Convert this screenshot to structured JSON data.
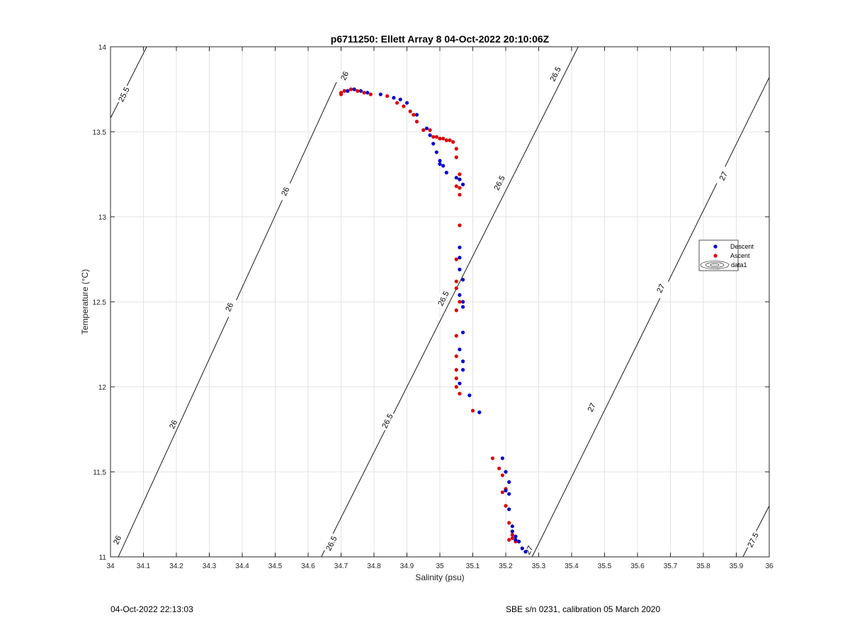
{
  "chart_data": {
    "type": "scatter",
    "title": "p6711250: Ellett Array 8 04-Oct-2022 20:10:06Z",
    "xlabel": "Salinity (psu)",
    "ylabel": "Temperature (°C)",
    "xlim": [
      34,
      36
    ],
    "ylim": [
      11,
      14
    ],
    "grid": true,
    "legend_placement": "right",
    "x_ticks": [
      "34",
      "34.1",
      "34.2",
      "34.3",
      "34.4",
      "34.5",
      "34.6",
      "34.7",
      "34.8",
      "34.9",
      "35",
      "35.1",
      "35.2",
      "35.3",
      "35.4",
      "35.5",
      "35.6",
      "35.7",
      "35.8",
      "35.9",
      "36"
    ],
    "y_ticks": [
      "11",
      "11.5",
      "12",
      "12.5",
      "13",
      "13.5",
      "14"
    ],
    "contours": [
      {
        "label": "25.5",
        "points": [
          [
            34.0,
            13.58
          ],
          [
            34.11,
            14.0
          ]
        ],
        "label_positions": [
          [
            34.04,
            13.72
          ]
        ]
      },
      {
        "label": "26",
        "points": [
          [
            34.0,
            10.9
          ],
          [
            34.7,
            13.85
          ]
        ],
        "label_positions": [
          [
            34.02,
            11.1
          ],
          [
            34.19,
            11.78
          ],
          [
            34.36,
            12.47
          ],
          [
            34.53,
            13.15
          ],
          [
            34.71,
            13.83
          ]
        ]
      },
      {
        "label": "26.5",
        "points": [
          [
            34.64,
            11.0
          ],
          [
            35.42,
            14.0
          ]
        ],
        "label_positions": [
          [
            34.67,
            11.08
          ],
          [
            34.84,
            11.8
          ],
          [
            35.01,
            12.52
          ],
          [
            35.18,
            13.2
          ],
          [
            35.35,
            13.84
          ]
        ]
      },
      {
        "label": "27",
        "points": [
          [
            35.28,
            11.0
          ],
          [
            36.0,
            13.82
          ]
        ],
        "label_positions": [
          [
            35.27,
            11.04
          ],
          [
            35.46,
            11.88
          ],
          [
            35.67,
            12.58
          ],
          [
            35.86,
            13.24
          ]
        ]
      },
      {
        "label": "27.5",
        "points": [
          [
            35.92,
            11.0
          ],
          [
            36.0,
            11.3
          ]
        ],
        "label_positions": [
          [
            35.95,
            11.1
          ]
        ]
      }
    ],
    "series": [
      {
        "name": "Descent",
        "color": "#0000cc",
        "x": [
          34.72,
          34.74,
          34.76,
          34.78,
          34.82,
          34.86,
          34.88,
          34.9,
          34.93,
          34.96,
          34.97,
          34.98,
          34.99,
          35.0,
          35.0,
          35.01,
          35.02,
          35.05,
          35.06,
          35.07,
          35.06,
          35.06,
          35.06,
          35.07,
          35.07,
          35.06,
          35.07,
          35.07,
          35.06,
          35.07,
          35.07,
          35.06,
          35.09,
          35.12,
          35.19,
          35.2,
          35.21,
          35.2,
          35.21,
          35.21,
          35.22,
          35.22,
          35.23,
          35.23,
          35.24,
          35.25,
          35.26
        ],
        "y": [
          13.74,
          13.75,
          13.74,
          13.73,
          13.72,
          13.7,
          13.69,
          13.67,
          13.6,
          13.52,
          13.48,
          13.43,
          13.38,
          13.33,
          13.31,
          13.3,
          13.26,
          13.23,
          13.22,
          13.19,
          12.82,
          12.76,
          12.69,
          12.63,
          12.5,
          12.54,
          12.47,
          12.32,
          12.22,
          12.15,
          12.1,
          12.02,
          11.95,
          11.85,
          11.58,
          11.5,
          11.44,
          11.39,
          11.37,
          11.28,
          11.18,
          11.15,
          11.12,
          11.1,
          11.09,
          11.05,
          11.03
        ]
      },
      {
        "name": "Ascent",
        "color": "#dd0000",
        "x": [
          34.7,
          34.7,
          34.71,
          34.72,
          34.73,
          34.75,
          34.77,
          34.79,
          34.84,
          34.87,
          34.89,
          34.91,
          34.92,
          34.93,
          34.95,
          34.97,
          34.98,
          34.99,
          35.0,
          35.01,
          35.02,
          35.03,
          35.04,
          35.05,
          35.05,
          35.06,
          35.05,
          35.06,
          35.06,
          35.06,
          35.06,
          35.05,
          35.05,
          35.05,
          35.06,
          35.05,
          35.05,
          35.05,
          35.05,
          35.05,
          35.05,
          35.06,
          35.1,
          35.16,
          35.18,
          35.19,
          35.2,
          35.19,
          35.2,
          35.21,
          35.22,
          35.22,
          35.21,
          35.22,
          35.23,
          35.24
        ],
        "y": [
          13.72,
          13.73,
          13.74,
          13.74,
          13.75,
          13.74,
          13.73,
          13.72,
          13.71,
          13.67,
          13.65,
          13.62,
          13.6,
          13.56,
          13.51,
          13.51,
          13.47,
          13.47,
          13.46,
          13.46,
          13.45,
          13.45,
          13.44,
          13.4,
          13.35,
          13.25,
          13.18,
          13.22,
          13.13,
          13.17,
          12.95,
          12.75,
          12.62,
          12.58,
          12.5,
          12.45,
          12.3,
          12.18,
          12.1,
          12.05,
          12.0,
          11.96,
          11.86,
          11.58,
          11.52,
          11.48,
          11.4,
          11.38,
          11.3,
          11.2,
          11.15,
          11.13,
          11.1,
          11.11,
          11.09,
          11.09
        ]
      },
      {
        "name": "data1",
        "color": "#000000",
        "x": [],
        "y": []
      }
    ]
  },
  "footer": {
    "left": "04-Oct-2022 22:13:03",
    "right": "SBE s/n 0231, calibration 05 March 2020"
  }
}
